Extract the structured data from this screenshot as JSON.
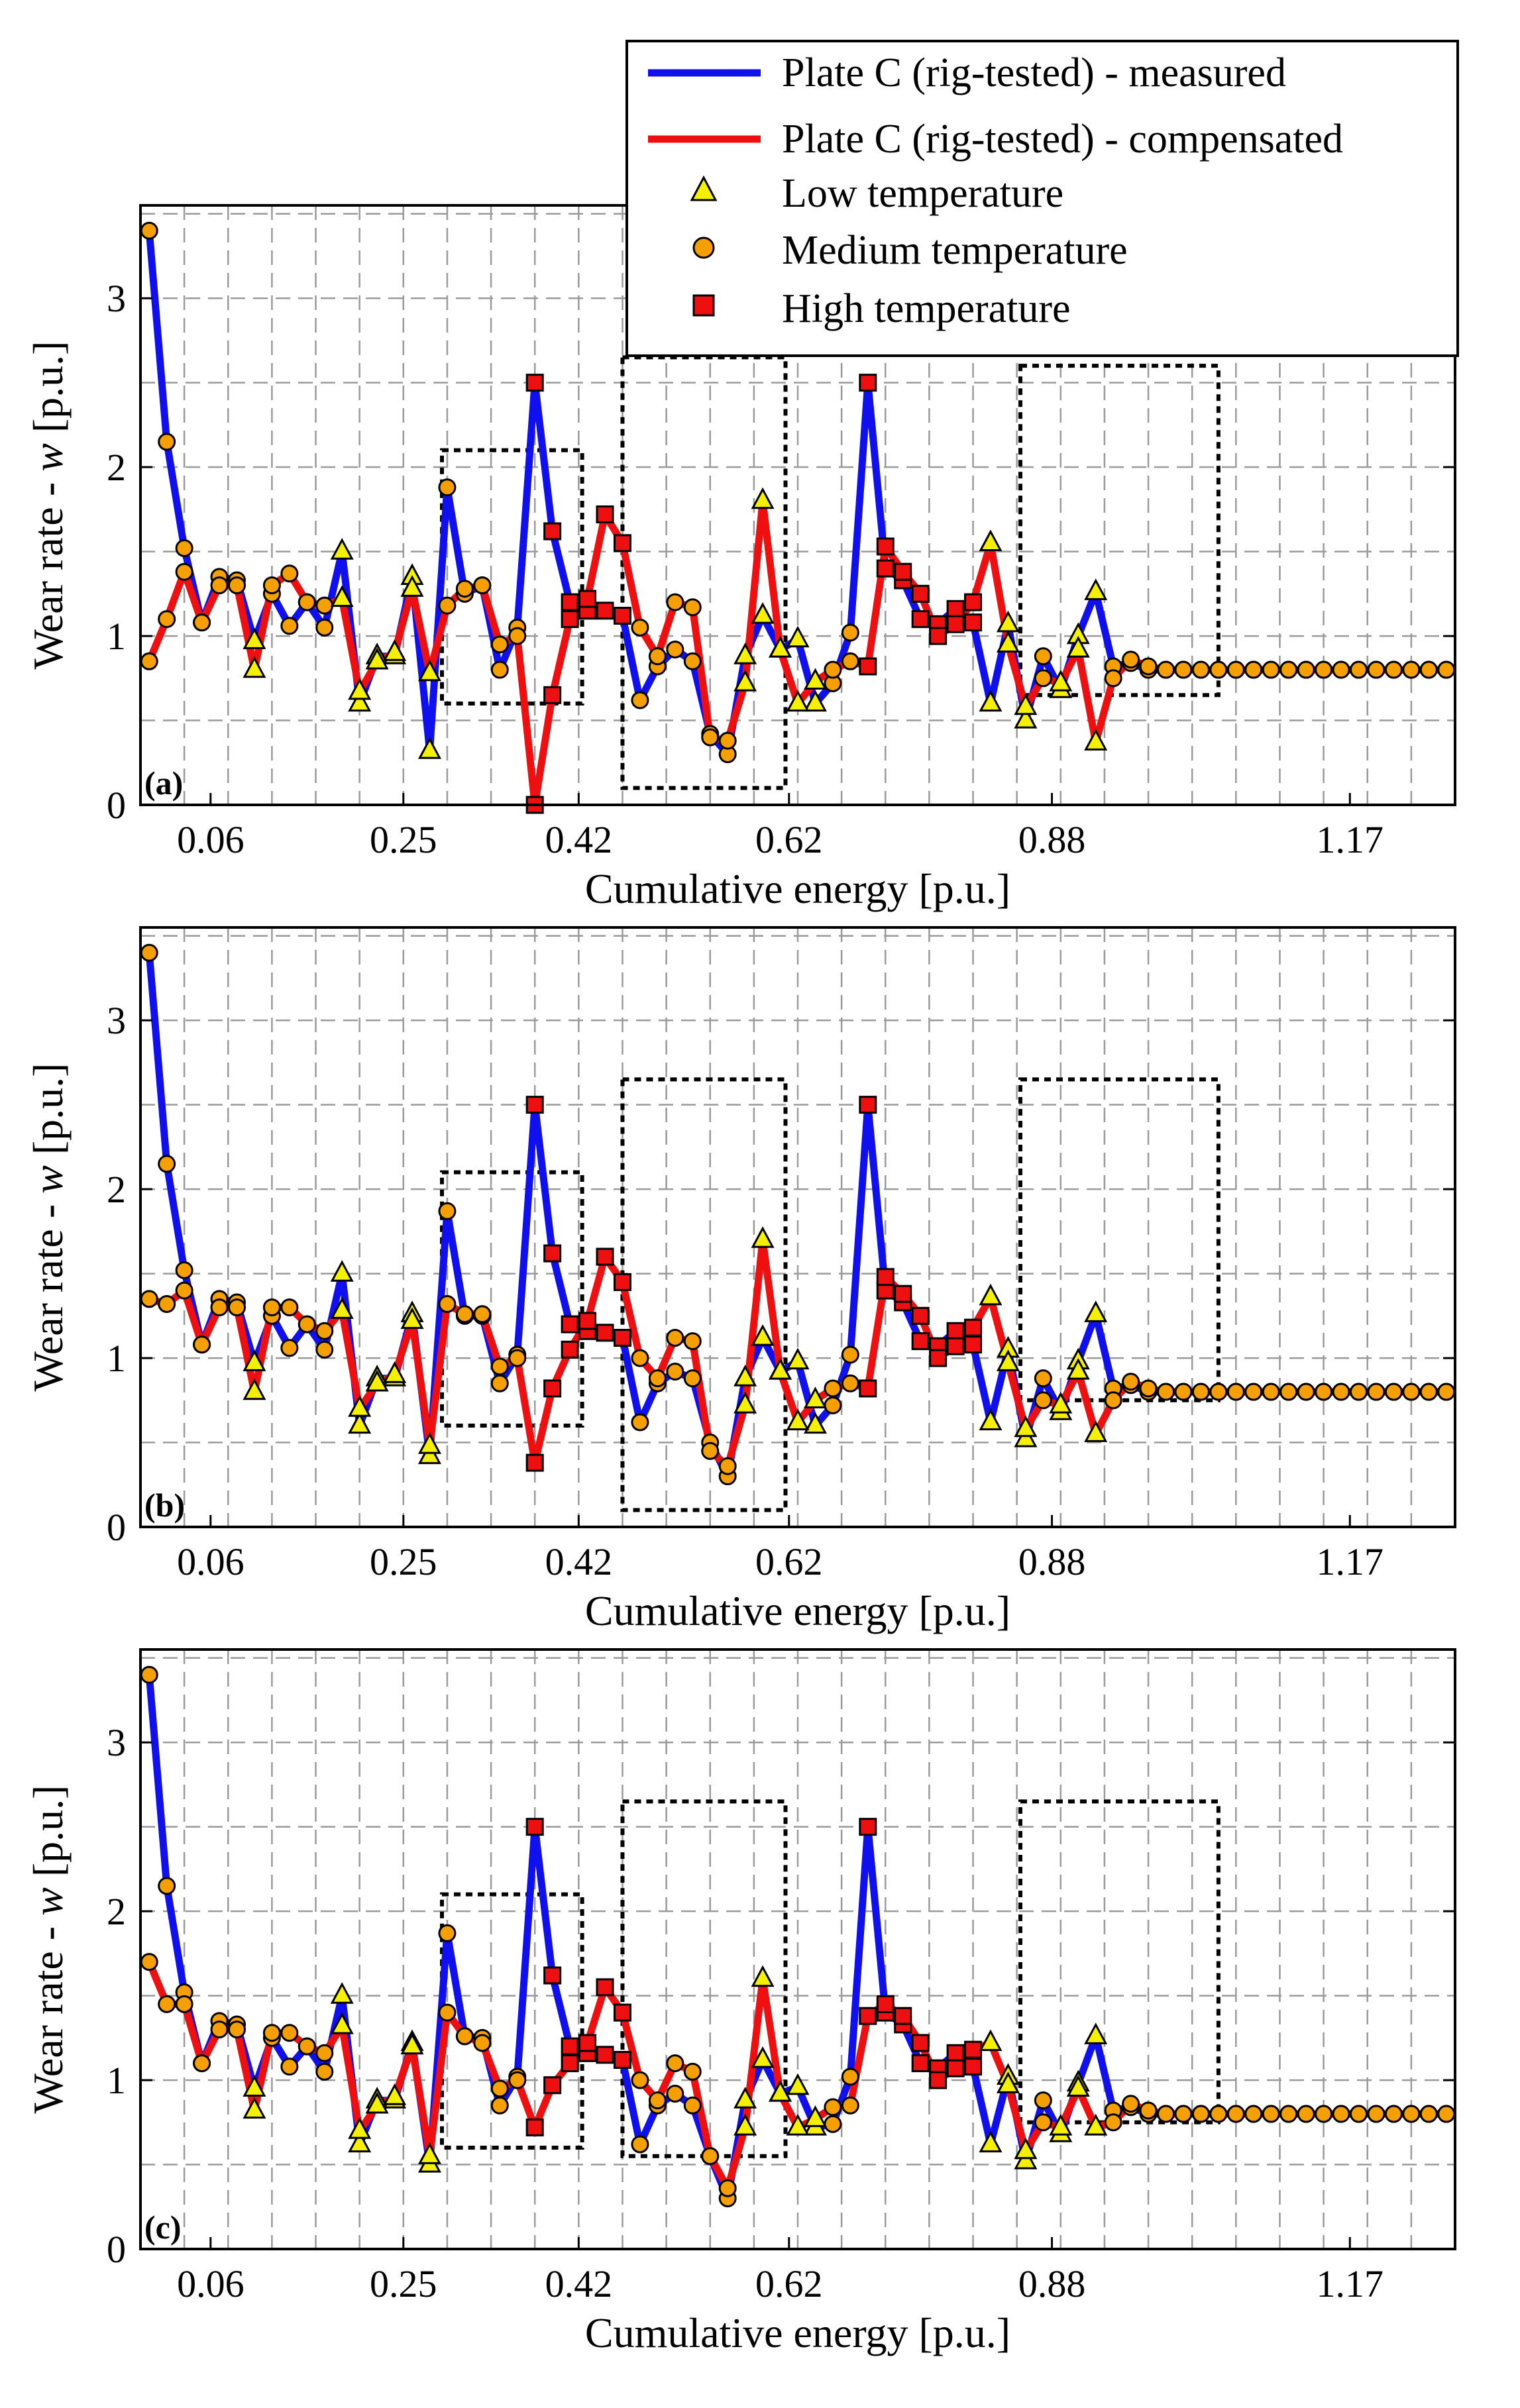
{
  "figure": {
    "legend": {
      "entries": [
        {
          "label": "Plate C (rig-tested) - measured",
          "kind": "line",
          "color": "#1010ee"
        },
        {
          "label": "Plate C (rig-tested) - compensated",
          "kind": "line",
          "color": "#ee1010"
        },
        {
          "label": "Low temperature",
          "kind": "triangle",
          "color": "#f4f000"
        },
        {
          "label": "Medium temperature",
          "kind": "circle",
          "color": "#f5a000"
        },
        {
          "label": "High temperature",
          "kind": "square",
          "color": "#ee1010"
        }
      ]
    },
    "colors": {
      "measured": "#1010ee",
      "compensated": "#ee1010",
      "low": "#f4f000",
      "medium": "#f5a000",
      "high": "#ee1010",
      "grid": "#9a9a9a"
    }
  },
  "chart_data": [
    {
      "type": "line",
      "panel_label": "(a)",
      "xlabel": "Cumulative energy [p.u.]",
      "ylabel_prefix": "Wear rate - ",
      "ylabel_var": "w",
      "ylabel_suffix": " [p.u.]",
      "xtick_labels": [
        "0.06",
        "0.25",
        "0.42",
        "0.62",
        "0.88",
        "1.17"
      ],
      "xtick_positions": [
        4,
        15,
        25,
        37,
        52,
        69
      ],
      "yticks": [
        0,
        1,
        2,
        3
      ],
      "ylim": [
        0,
        3.55
      ],
      "xlim": [
        0,
        75
      ],
      "x": [
        0.5,
        1.5,
        2.5,
        3.5,
        4.5,
        5.5,
        6.5,
        7.5,
        8.5,
        9.5,
        10.5,
        11.5,
        12.5,
        13.5,
        14.5,
        15.5,
        16.5,
        17.5,
        18.5,
        19.5,
        20.5,
        21.5,
        22.5,
        23.5,
        24.5,
        25.5,
        26.5,
        27.5,
        28.5,
        29.5,
        30.5,
        31.5,
        32.5,
        33.5,
        34.5,
        35.5,
        36.5,
        37.5,
        38.5,
        39.5,
        40.5,
        41.5,
        42.5,
        43.5,
        44.5,
        45.5,
        46.5,
        47.5,
        48.5,
        49.5,
        50.5,
        51.5,
        52.5,
        53.5,
        54.5,
        55.5,
        56.5,
        57.5,
        58.5,
        59.5,
        60.5,
        61.5,
        62.5,
        63.5,
        64.5,
        65.5,
        66.5,
        67.5,
        68.5,
        69.5,
        70.5,
        71.5,
        72.5,
        73.5,
        74.5
      ],
      "temp": [
        "M",
        "M",
        "M",
        "M",
        "M",
        "M",
        "L",
        "M",
        "M",
        "M",
        "M",
        "L",
        "L",
        "L",
        "L",
        "L",
        "L",
        "M",
        "M",
        "M",
        "M",
        "M",
        "H",
        "H",
        "H",
        "H",
        "H",
        "H",
        "M",
        "M",
        "M",
        "M",
        "M",
        "M",
        "L",
        "L",
        "L",
        "L",
        "L",
        "M",
        "M",
        "H",
        "H",
        "H",
        "H",
        "H",
        "H",
        "H",
        "L",
        "L",
        "L",
        "M",
        "L",
        "L",
        "L",
        "M",
        "M",
        "M",
        "M",
        "M",
        "M",
        "M",
        "M",
        "M",
        "M",
        "M",
        "M",
        "M",
        "M",
        "M",
        "M",
        "M",
        "M",
        "M",
        "M"
      ],
      "series": [
        {
          "name": "Plate C (rig-tested) - measured",
          "color": "#1010ee",
          "values": [
            3.4,
            2.15,
            1.52,
            1.08,
            1.35,
            1.33,
            0.97,
            1.25,
            1.06,
            1.2,
            1.05,
            1.5,
            0.6,
            0.88,
            0.88,
            1.35,
            0.32,
            1.88,
            1.25,
            1.3,
            0.8,
            1.05,
            2.5,
            1.62,
            1.2,
            1.15,
            1.15,
            1.12,
            0.62,
            0.82,
            0.92,
            0.85,
            0.42,
            0.3,
            0.88,
            1.12,
            0.92,
            0.98,
            0.6,
            0.72,
            1.02,
            2.5,
            1.4,
            1.33,
            1.1,
            1.07,
            1.16,
            1.08,
            0.6,
            1.07,
            0.5,
            0.88,
            0.68,
            1.0,
            1.26,
            0.82,
            0.84,
            0.8,
            0.8,
            0.8,
            0.8,
            0.8,
            0.8,
            0.8,
            0.8,
            0.8,
            0.8,
            0.8,
            0.8,
            0.8,
            0.8,
            0.8,
            0.8,
            0.8,
            0.8
          ]
        },
        {
          "name": "Plate C (rig-tested) - compensated",
          "color": "#ee1010",
          "values": [
            0.85,
            1.1,
            1.38,
            1.08,
            1.3,
            1.3,
            0.8,
            1.3,
            1.37,
            1.2,
            1.18,
            1.22,
            0.67,
            0.85,
            0.9,
            1.28,
            0.78,
            1.18,
            1.28,
            1.3,
            0.95,
            1.0,
            0.0,
            0.65,
            1.1,
            1.22,
            1.72,
            1.55,
            1.05,
            0.88,
            1.2,
            1.17,
            0.4,
            0.38,
            0.72,
            1.8,
            0.92,
            0.6,
            0.73,
            0.8,
            0.85,
            0.82,
            1.53,
            1.38,
            1.25,
            1.0,
            1.07,
            1.2,
            1.55,
            0.95,
            0.58,
            0.75,
            0.72,
            0.92,
            0.37,
            0.75,
            0.86,
            0.82,
            0.8,
            0.8,
            0.8,
            0.8,
            0.8,
            0.8,
            0.8,
            0.8,
            0.8,
            0.8,
            0.8,
            0.8,
            0.8,
            0.8,
            0.8,
            0.8,
            0.8
          ]
        }
      ],
      "highlight_boxes": [
        {
          "x0": 17.2,
          "x1": 25.2,
          "y0": 0.6,
          "y1": 2.1
        },
        {
          "x0": 27.5,
          "x1": 36.8,
          "y0": 0.1,
          "y1": 2.65
        },
        {
          "x0": 50.2,
          "x1": 61.5,
          "y0": 0.65,
          "y1": 2.6
        }
      ]
    },
    {
      "type": "line",
      "panel_label": "(b)",
      "xlabel": "Cumulative energy [p.u.]",
      "ylabel_prefix": "Wear rate - ",
      "ylabel_var": "w",
      "ylabel_suffix": " [p.u.]",
      "xtick_labels": [
        "0.06",
        "0.25",
        "0.42",
        "0.62",
        "0.88",
        "1.17"
      ],
      "xtick_positions": [
        4,
        15,
        25,
        37,
        52,
        69
      ],
      "yticks": [
        0,
        1,
        2,
        3
      ],
      "ylim": [
        0,
        3.55
      ],
      "xlim": [
        0,
        75
      ],
      "x": [
        0.5,
        1.5,
        2.5,
        3.5,
        4.5,
        5.5,
        6.5,
        7.5,
        8.5,
        9.5,
        10.5,
        11.5,
        12.5,
        13.5,
        14.5,
        15.5,
        16.5,
        17.5,
        18.5,
        19.5,
        20.5,
        21.5,
        22.5,
        23.5,
        24.5,
        25.5,
        26.5,
        27.5,
        28.5,
        29.5,
        30.5,
        31.5,
        32.5,
        33.5,
        34.5,
        35.5,
        36.5,
        37.5,
        38.5,
        39.5,
        40.5,
        41.5,
        42.5,
        43.5,
        44.5,
        45.5,
        46.5,
        47.5,
        48.5,
        49.5,
        50.5,
        51.5,
        52.5,
        53.5,
        54.5,
        55.5,
        56.5,
        57.5,
        58.5,
        59.5,
        60.5,
        61.5,
        62.5,
        63.5,
        64.5,
        65.5,
        66.5,
        67.5,
        68.5,
        69.5,
        70.5,
        71.5,
        72.5,
        73.5,
        74.5
      ],
      "temp": [
        "M",
        "M",
        "M",
        "M",
        "M",
        "M",
        "L",
        "M",
        "M",
        "M",
        "M",
        "L",
        "L",
        "L",
        "L",
        "L",
        "L",
        "M",
        "M",
        "M",
        "M",
        "M",
        "H",
        "H",
        "H",
        "H",
        "H",
        "H",
        "M",
        "M",
        "M",
        "M",
        "M",
        "M",
        "L",
        "L",
        "L",
        "L",
        "L",
        "M",
        "M",
        "H",
        "H",
        "H",
        "H",
        "H",
        "H",
        "H",
        "L",
        "L",
        "L",
        "M",
        "L",
        "L",
        "L",
        "M",
        "M",
        "M",
        "M",
        "M",
        "M",
        "M",
        "M",
        "M",
        "M",
        "M",
        "M",
        "M",
        "M",
        "M",
        "M",
        "M",
        "M",
        "M",
        "M"
      ],
      "series": [
        {
          "name": "Plate C (rig-tested) - measured",
          "color": "#1010ee",
          "values": [
            3.4,
            2.15,
            1.52,
            1.08,
            1.35,
            1.33,
            0.97,
            1.25,
            1.06,
            1.2,
            1.05,
            1.5,
            0.6,
            0.88,
            0.88,
            1.26,
            0.42,
            1.87,
            1.25,
            1.25,
            0.85,
            1.02,
            2.5,
            1.62,
            1.2,
            1.16,
            1.15,
            1.12,
            0.62,
            0.85,
            0.92,
            0.88,
            0.5,
            0.3,
            0.88,
            1.12,
            0.92,
            0.98,
            0.6,
            0.72,
            1.02,
            2.5,
            1.4,
            1.33,
            1.1,
            1.07,
            1.16,
            1.08,
            0.62,
            1.05,
            0.52,
            0.88,
            0.68,
            0.98,
            1.26,
            0.82,
            0.84,
            0.8,
            0.8,
            0.8,
            0.8,
            0.8,
            0.8,
            0.8,
            0.8,
            0.8,
            0.8,
            0.8,
            0.8,
            0.8,
            0.8,
            0.8,
            0.8,
            0.8,
            0.8
          ]
        },
        {
          "name": "Plate C (rig-tested) - compensated",
          "color": "#ee1010",
          "values": [
            1.35,
            1.32,
            1.4,
            1.08,
            1.3,
            1.3,
            0.8,
            1.3,
            1.3,
            1.2,
            1.16,
            1.28,
            0.7,
            0.85,
            0.9,
            1.22,
            0.48,
            1.32,
            1.26,
            1.26,
            0.95,
            1.0,
            0.38,
            0.82,
            1.05,
            1.22,
            1.6,
            1.45,
            1.0,
            0.88,
            1.12,
            1.1,
            0.45,
            0.36,
            0.72,
            1.7,
            0.92,
            0.62,
            0.75,
            0.82,
            0.85,
            0.82,
            1.48,
            1.38,
            1.25,
            1.0,
            1.07,
            1.18,
            1.36,
            0.97,
            0.58,
            0.75,
            0.72,
            0.92,
            0.55,
            0.75,
            0.86,
            0.82,
            0.8,
            0.8,
            0.8,
            0.8,
            0.8,
            0.8,
            0.8,
            0.8,
            0.8,
            0.8,
            0.8,
            0.8,
            0.8,
            0.8,
            0.8,
            0.8,
            0.8
          ]
        }
      ],
      "highlight_boxes": [
        {
          "x0": 17.2,
          "x1": 25.2,
          "y0": 0.6,
          "y1": 2.1
        },
        {
          "x0": 27.5,
          "x1": 36.8,
          "y0": 0.1,
          "y1": 2.65
        },
        {
          "x0": 50.2,
          "x1": 61.5,
          "y0": 0.75,
          "y1": 2.65
        }
      ]
    },
    {
      "type": "line",
      "panel_label": "(c)",
      "xlabel": "Cumulative energy [p.u.]",
      "ylabel_prefix": "Wear rate - ",
      "ylabel_var": "w",
      "ylabel_suffix": " [p.u.]",
      "xtick_labels": [
        "0.06",
        "0.25",
        "0.42",
        "0.62",
        "0.88",
        "1.17"
      ],
      "xtick_positions": [
        4,
        15,
        25,
        37,
        52,
        69
      ],
      "yticks": [
        0,
        1,
        2,
        3
      ],
      "ylim": [
        0,
        3.55
      ],
      "xlim": [
        0,
        75
      ],
      "x": [
        0.5,
        1.5,
        2.5,
        3.5,
        4.5,
        5.5,
        6.5,
        7.5,
        8.5,
        9.5,
        10.5,
        11.5,
        12.5,
        13.5,
        14.5,
        15.5,
        16.5,
        17.5,
        18.5,
        19.5,
        20.5,
        21.5,
        22.5,
        23.5,
        24.5,
        25.5,
        26.5,
        27.5,
        28.5,
        29.5,
        30.5,
        31.5,
        32.5,
        33.5,
        34.5,
        35.5,
        36.5,
        37.5,
        38.5,
        39.5,
        40.5,
        41.5,
        42.5,
        43.5,
        44.5,
        45.5,
        46.5,
        47.5,
        48.5,
        49.5,
        50.5,
        51.5,
        52.5,
        53.5,
        54.5,
        55.5,
        56.5,
        57.5,
        58.5,
        59.5,
        60.5,
        61.5,
        62.5,
        63.5,
        64.5,
        65.5,
        66.5,
        67.5,
        68.5,
        69.5,
        70.5,
        71.5,
        72.5,
        73.5,
        74.5
      ],
      "temp": [
        "M",
        "M",
        "M",
        "M",
        "M",
        "M",
        "L",
        "M",
        "M",
        "M",
        "M",
        "L",
        "L",
        "L",
        "L",
        "L",
        "L",
        "M",
        "M",
        "M",
        "M",
        "M",
        "H",
        "H",
        "H",
        "H",
        "H",
        "H",
        "M",
        "M",
        "M",
        "M",
        "M",
        "M",
        "L",
        "L",
        "L",
        "L",
        "L",
        "M",
        "M",
        "H",
        "H",
        "H",
        "H",
        "H",
        "H",
        "H",
        "L",
        "L",
        "L",
        "M",
        "L",
        "L",
        "L",
        "M",
        "M",
        "M",
        "M",
        "M",
        "M",
        "M",
        "M",
        "M",
        "M",
        "M",
        "M",
        "M",
        "M",
        "M",
        "M",
        "M",
        "M",
        "M",
        "M"
      ],
      "series": [
        {
          "name": "Plate C (rig-tested) - measured",
          "color": "#1010ee",
          "values": [
            3.4,
            2.15,
            1.52,
            1.1,
            1.35,
            1.33,
            0.95,
            1.25,
            1.08,
            1.2,
            1.05,
            1.5,
            0.62,
            0.88,
            0.88,
            1.22,
            0.5,
            1.87,
            1.26,
            1.25,
            0.85,
            1.02,
            2.5,
            1.62,
            1.2,
            1.16,
            1.15,
            1.12,
            0.62,
            0.85,
            0.92,
            0.85,
            0.55,
            0.3,
            0.88,
            1.12,
            0.92,
            0.96,
            0.72,
            0.74,
            1.02,
            2.5,
            1.4,
            1.33,
            1.1,
            1.07,
            1.16,
            1.08,
            0.62,
            1.02,
            0.52,
            0.88,
            0.68,
            0.98,
            1.26,
            0.82,
            0.84,
            0.8,
            0.8,
            0.8,
            0.8,
            0.8,
            0.8,
            0.8,
            0.8,
            0.8,
            0.8,
            0.8,
            0.8,
            0.8,
            0.8,
            0.8,
            0.8,
            0.8,
            0.8
          ]
        },
        {
          "name": "Plate C (rig-tested) - compensated",
          "color": "#ee1010",
          "values": [
            1.7,
            1.45,
            1.45,
            1.1,
            1.3,
            1.3,
            0.82,
            1.28,
            1.28,
            1.2,
            1.16,
            1.32,
            0.7,
            0.85,
            0.9,
            1.2,
            0.55,
            1.4,
            1.26,
            1.22,
            0.95,
            1.0,
            0.72,
            0.97,
            1.1,
            1.22,
            1.55,
            1.4,
            1.0,
            0.88,
            1.1,
            1.05,
            0.55,
            0.36,
            0.72,
            1.6,
            0.92,
            0.72,
            0.77,
            0.84,
            0.85,
            1.38,
            1.45,
            1.38,
            1.22,
            1.0,
            1.07,
            1.18,
            1.22,
            0.97,
            0.58,
            0.75,
            0.72,
            0.95,
            0.72,
            0.75,
            0.86,
            0.82,
            0.8,
            0.8,
            0.8,
            0.8,
            0.8,
            0.8,
            0.8,
            0.8,
            0.8,
            0.8,
            0.8,
            0.8,
            0.8,
            0.8,
            0.8,
            0.8,
            0.8
          ]
        }
      ],
      "highlight_boxes": [
        {
          "x0": 17.2,
          "x1": 25.2,
          "y0": 0.6,
          "y1": 2.1
        },
        {
          "x0": 27.5,
          "x1": 36.8,
          "y0": 0.55,
          "y1": 2.65
        },
        {
          "x0": 50.2,
          "x1": 61.5,
          "y0": 0.75,
          "y1": 2.65
        }
      ]
    }
  ]
}
